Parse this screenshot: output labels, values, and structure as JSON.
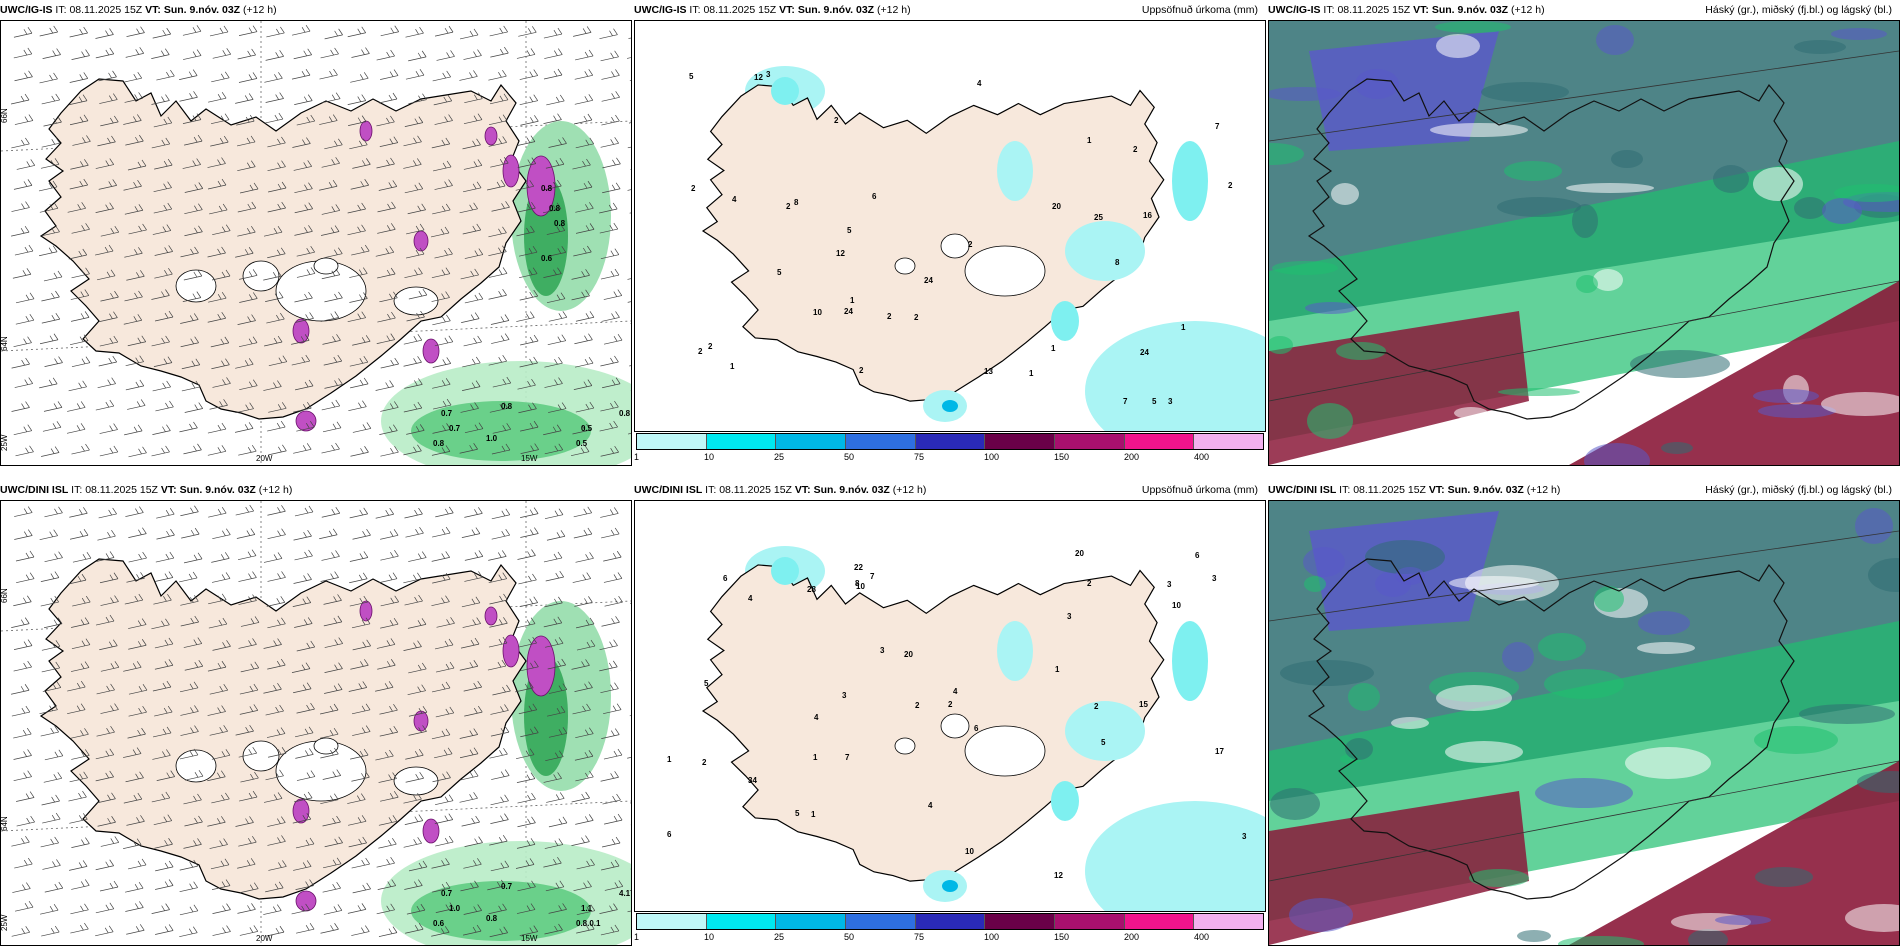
{
  "rows": [
    {
      "model": "UWC/IG-IS",
      "it_label": "IT:",
      "it_value": "08.11.2025 15Z",
      "vt_label": "VT:",
      "vt_value": "Sun. 9.nóv. 03Z",
      "lead": "(+12 h)",
      "wind_labels": [
        "0.7",
        "0.8",
        "0.5",
        "0.8",
        "0.7",
        "1.0",
        "0.8",
        "0.5",
        "0.8",
        "0.8",
        "0.8",
        "0.6"
      ],
      "precip_labels": [
        "24",
        "2",
        "12",
        "8",
        "3",
        "2",
        "2",
        "12",
        "24",
        "25",
        "16",
        "4",
        "5",
        "7",
        "5",
        "1",
        "2",
        "2",
        "7",
        "6",
        "5",
        "8",
        "1",
        "10",
        "24",
        "20",
        "13",
        "2",
        "2",
        "2",
        "1",
        "2",
        "1",
        "1",
        "1",
        "2",
        "4",
        "3",
        "5",
        "2"
      ],
      "axis": {
        "lon_a": "20W",
        "lon_b": "15W",
        "lat_a": "66N",
        "lat_b": "64N",
        "lat_c": "25W"
      }
    },
    {
      "model": "UWC/DINI ISL",
      "it_label": "IT:",
      "it_value": "08.11.2025 15Z",
      "vt_label": "VT:",
      "vt_value": "Sun. 9.nóv. 03Z",
      "lead": "(+12 h)",
      "wind_labels": [
        "0.7",
        "0.7",
        "1.1",
        "4.1",
        "1.0",
        "0.8",
        "0.6",
        "0.8.0.1"
      ],
      "precip_labels": [
        "2",
        "1",
        "6",
        "3",
        "12",
        "10",
        "6",
        "3",
        "5",
        "6",
        "7",
        "2",
        "3",
        "17",
        "34",
        "20",
        "28",
        "22",
        "4",
        "6",
        "3",
        "7",
        "4",
        "10",
        "8",
        "20",
        "15",
        "10",
        "1",
        "2",
        "1",
        "1",
        "2",
        "3",
        "4",
        "5",
        "3",
        "2",
        "4",
        "5"
      ],
      "axis": {
        "lon_a": "20W",
        "lon_b": "15W",
        "lat_a": "66N",
        "lat_b": "64N",
        "lat_c": "25W"
      }
    }
  ],
  "precip_title": "Uppsöfnuð úrkoma (mm)",
  "cloud_title": "Háský (gr.), miðský (fj.bl.) og lágský (bl.)",
  "colorbar": {
    "ticks": [
      "1",
      "10",
      "25",
      "50",
      "75",
      "100",
      "150",
      "200",
      "400"
    ],
    "colors": [
      "#bff7f7",
      "#00e8f0",
      "#00b8e6",
      "#2e6fe0",
      "#2a2ab8",
      "#6a0048",
      "#a8106e",
      "#f0148c",
      "#f2b0ee"
    ]
  },
  "palette": {
    "land": "#f7e8dc",
    "land_dark": "#efdccb",
    "wind_green": "#36c06a",
    "snow_magenta": "#c04fc4",
    "precip_cyan": "#aaf4f4",
    "cloud_blue": "#5a5ac8",
    "cloud_red": "#8b1a3a",
    "cloud_teal": "#2f6e72",
    "cloud_green": "#1fbf6f"
  }
}
